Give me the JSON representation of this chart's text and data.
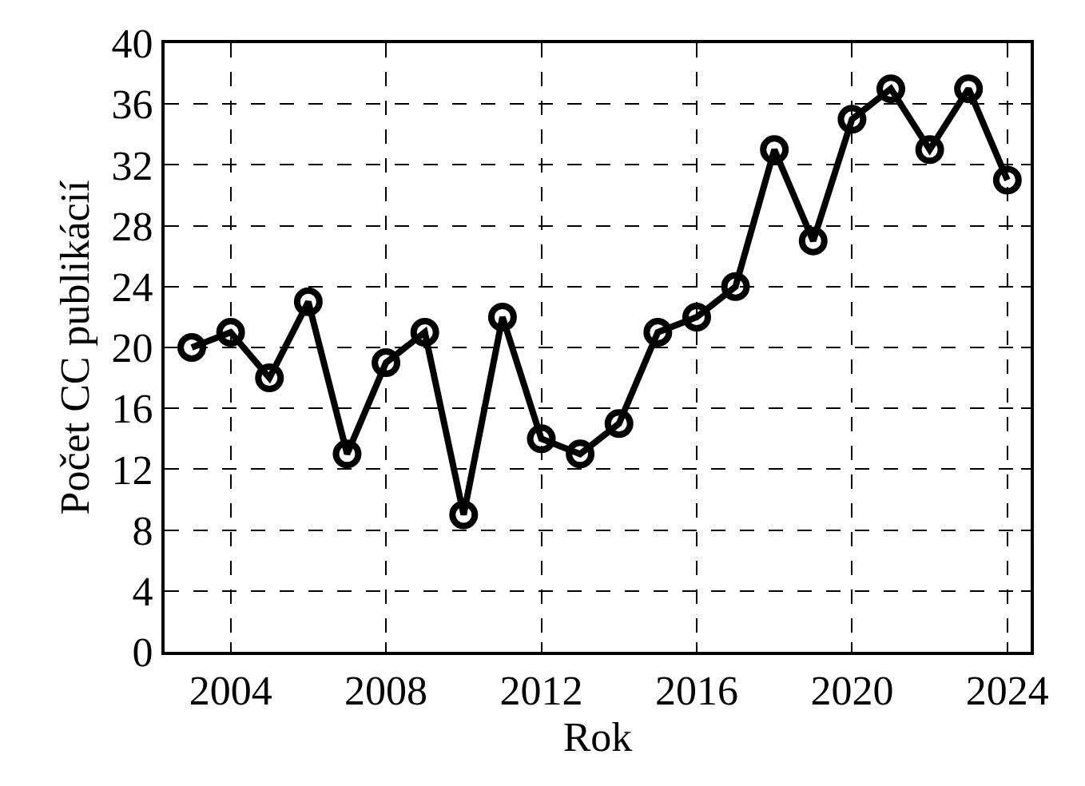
{
  "chart_data": {
    "type": "line",
    "xlabel": "Rok",
    "ylabel": "Počet CC publikácií",
    "x": [
      2003,
      2004,
      2005,
      2006,
      2007,
      2008,
      2009,
      2010,
      2011,
      2012,
      2013,
      2014,
      2015,
      2016,
      2017,
      2018,
      2019,
      2020,
      2021,
      2022,
      2023,
      2024
    ],
    "series": [
      {
        "color": "#000000",
        "values": [
          20,
          21,
          18,
          23,
          13,
          19,
          21,
          9,
          22,
          14,
          13,
          15,
          21,
          22,
          24,
          33,
          27,
          35,
          37,
          33,
          37,
          31
        ]
      }
    ],
    "xlim": [
      2002.3,
      2024.6
    ],
    "xticks": [
      2004,
      2008,
      2012,
      2016,
      2020,
      2024
    ],
    "ylim": [
      0,
      40
    ],
    "yticks": [
      0,
      4,
      8,
      12,
      16,
      20,
      24,
      28,
      32,
      36,
      40
    ],
    "grid": true,
    "marker": "circle",
    "line_style": "solid"
  }
}
